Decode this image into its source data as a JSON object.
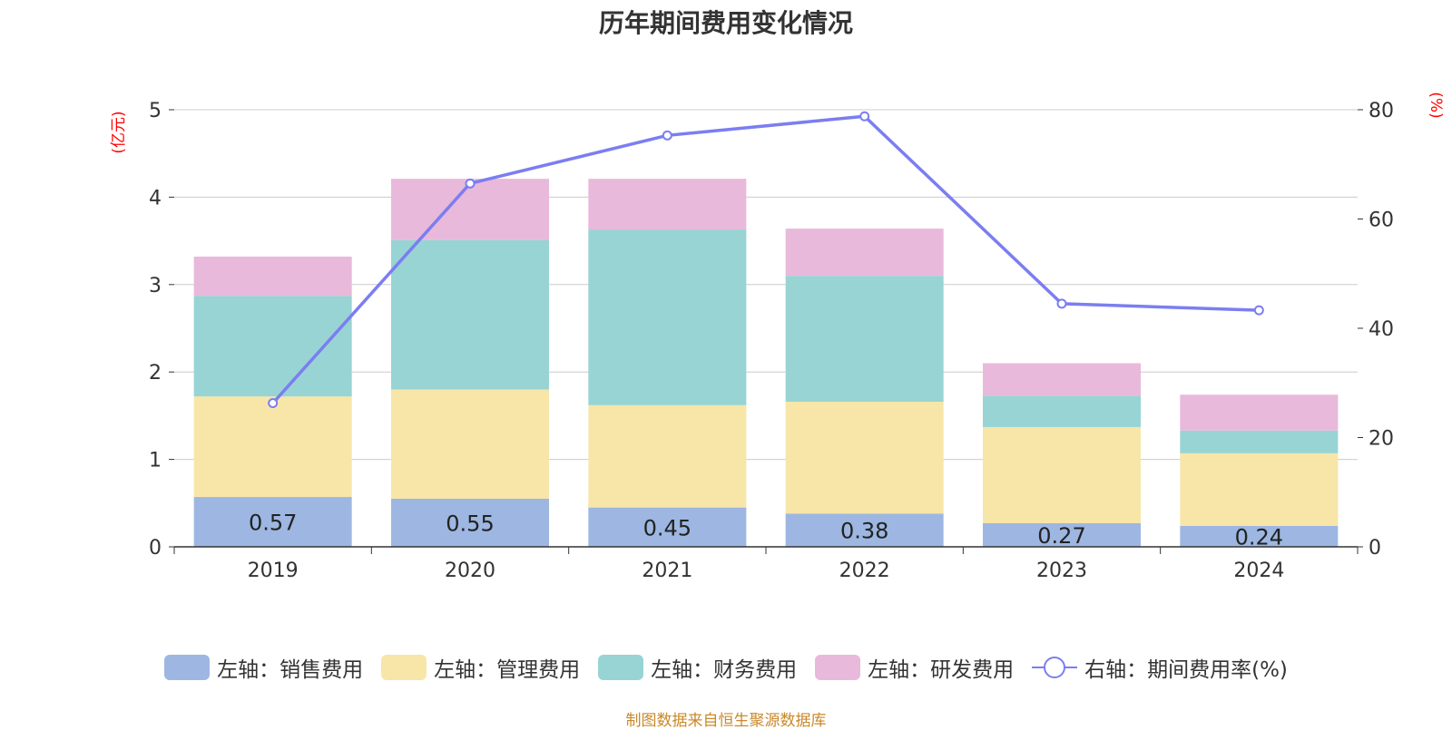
{
  "title": "历年期间费用变化情况",
  "source": "制图数据来自恒生聚源数据库",
  "colors": {
    "sales": "#9db7e2",
    "admin": "#f7e6a8",
    "finance": "#98d4d4",
    "rd": "#e8b9da",
    "ratio": "#7b7ef0",
    "grid": "#cccccc",
    "axis": "#333333",
    "unit": "#ff0000"
  },
  "chart_data": {
    "type": "bar",
    "stacked": true,
    "categories": [
      "2019",
      "2020",
      "2021",
      "2022",
      "2023",
      "2024"
    ],
    "left_axis": {
      "unit_label": "(亿元)",
      "ticks": [
        "0",
        "1",
        "2",
        "3",
        "4",
        "5"
      ],
      "range": [
        0,
        5
      ]
    },
    "right_axis": {
      "unit_label": "(%)",
      "ticks": [
        "0",
        "20",
        "40",
        "60",
        "80"
      ],
      "range": [
        0,
        80
      ]
    },
    "series": [
      {
        "name": "左轴：销售费用",
        "key": "sales",
        "values": [
          0.57,
          0.55,
          0.45,
          0.38,
          0.27,
          0.24
        ],
        "labels": [
          "0.57",
          "0.55",
          "0.45",
          "0.38",
          "0.27",
          "0.24"
        ]
      },
      {
        "name": "左轴：管理费用",
        "key": "admin",
        "values": [
          1.15,
          1.25,
          1.17,
          1.28,
          1.1,
          0.83
        ]
      },
      {
        "name": "左轴：财务费用",
        "key": "finance",
        "values": [
          1.15,
          1.71,
          2.01,
          1.44,
          0.36,
          0.26
        ]
      },
      {
        "name": "左轴：研发费用",
        "key": "rd",
        "values": [
          0.45,
          0.7,
          0.58,
          0.54,
          0.37,
          0.41
        ]
      }
    ],
    "line": {
      "name": "右轴：期间费用率(%)",
      "values": [
        26.3,
        66.5,
        75.3,
        78.8,
        44.5,
        43.3
      ]
    },
    "grid": true,
    "legend_position": "bottom"
  }
}
